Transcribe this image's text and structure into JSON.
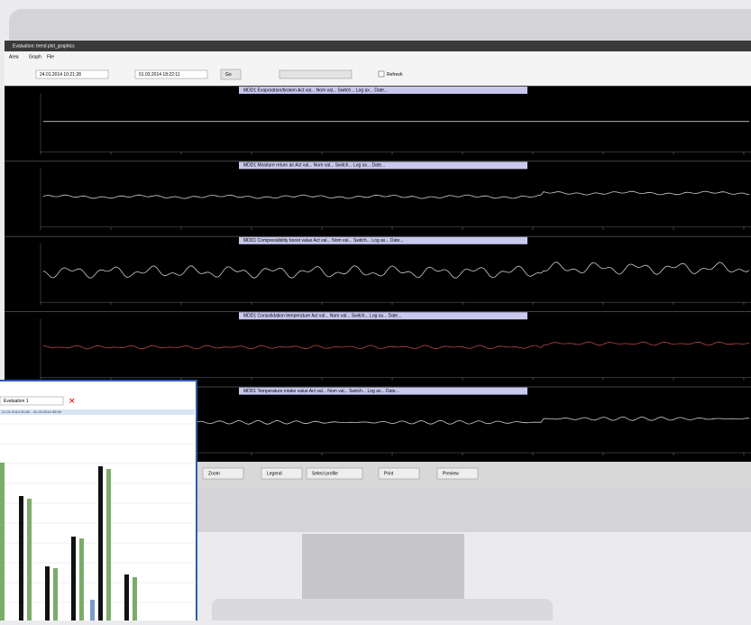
{
  "window": {
    "title": "Evaluation: trend plot_graphics",
    "menu": [
      "Area",
      "Graph",
      "File"
    ],
    "from": "24.01.2014 10:21:28",
    "to": "01.03.2014 18:22:11",
    "apply": "Go",
    "checkbox": "Refresh"
  },
  "panels": [
    {
      "title": "MDD1 Evaporation/broken  Act val...  Nom val...  Switch...  Log ax...  Date..."
    },
    {
      "title": "MDD1 Moisture return air  Act val...  Nom val...  Switch...  Log ax...  Date..."
    },
    {
      "title": "MDD1 Compressibility boost value  Act val...  Nom val...  Switch...  Log ax...  Date..."
    },
    {
      "title": "MDD1 Consolidation temperature  Act val...  Nom val...  Switch...  Log ax...  Date..."
    },
    {
      "title": "MDD1 Temperature intake value  Act val...  Nom val...  Switch...  Log ax...  Date..."
    }
  ],
  "toolbar": [
    "Zoom",
    "Legend",
    "Select profile",
    "Print",
    "Preview"
  ],
  "overlay": {
    "title": "Evaluation 1",
    "range": "21.01.2014 00:00 - 01.03.2014 00:00"
  }
}
